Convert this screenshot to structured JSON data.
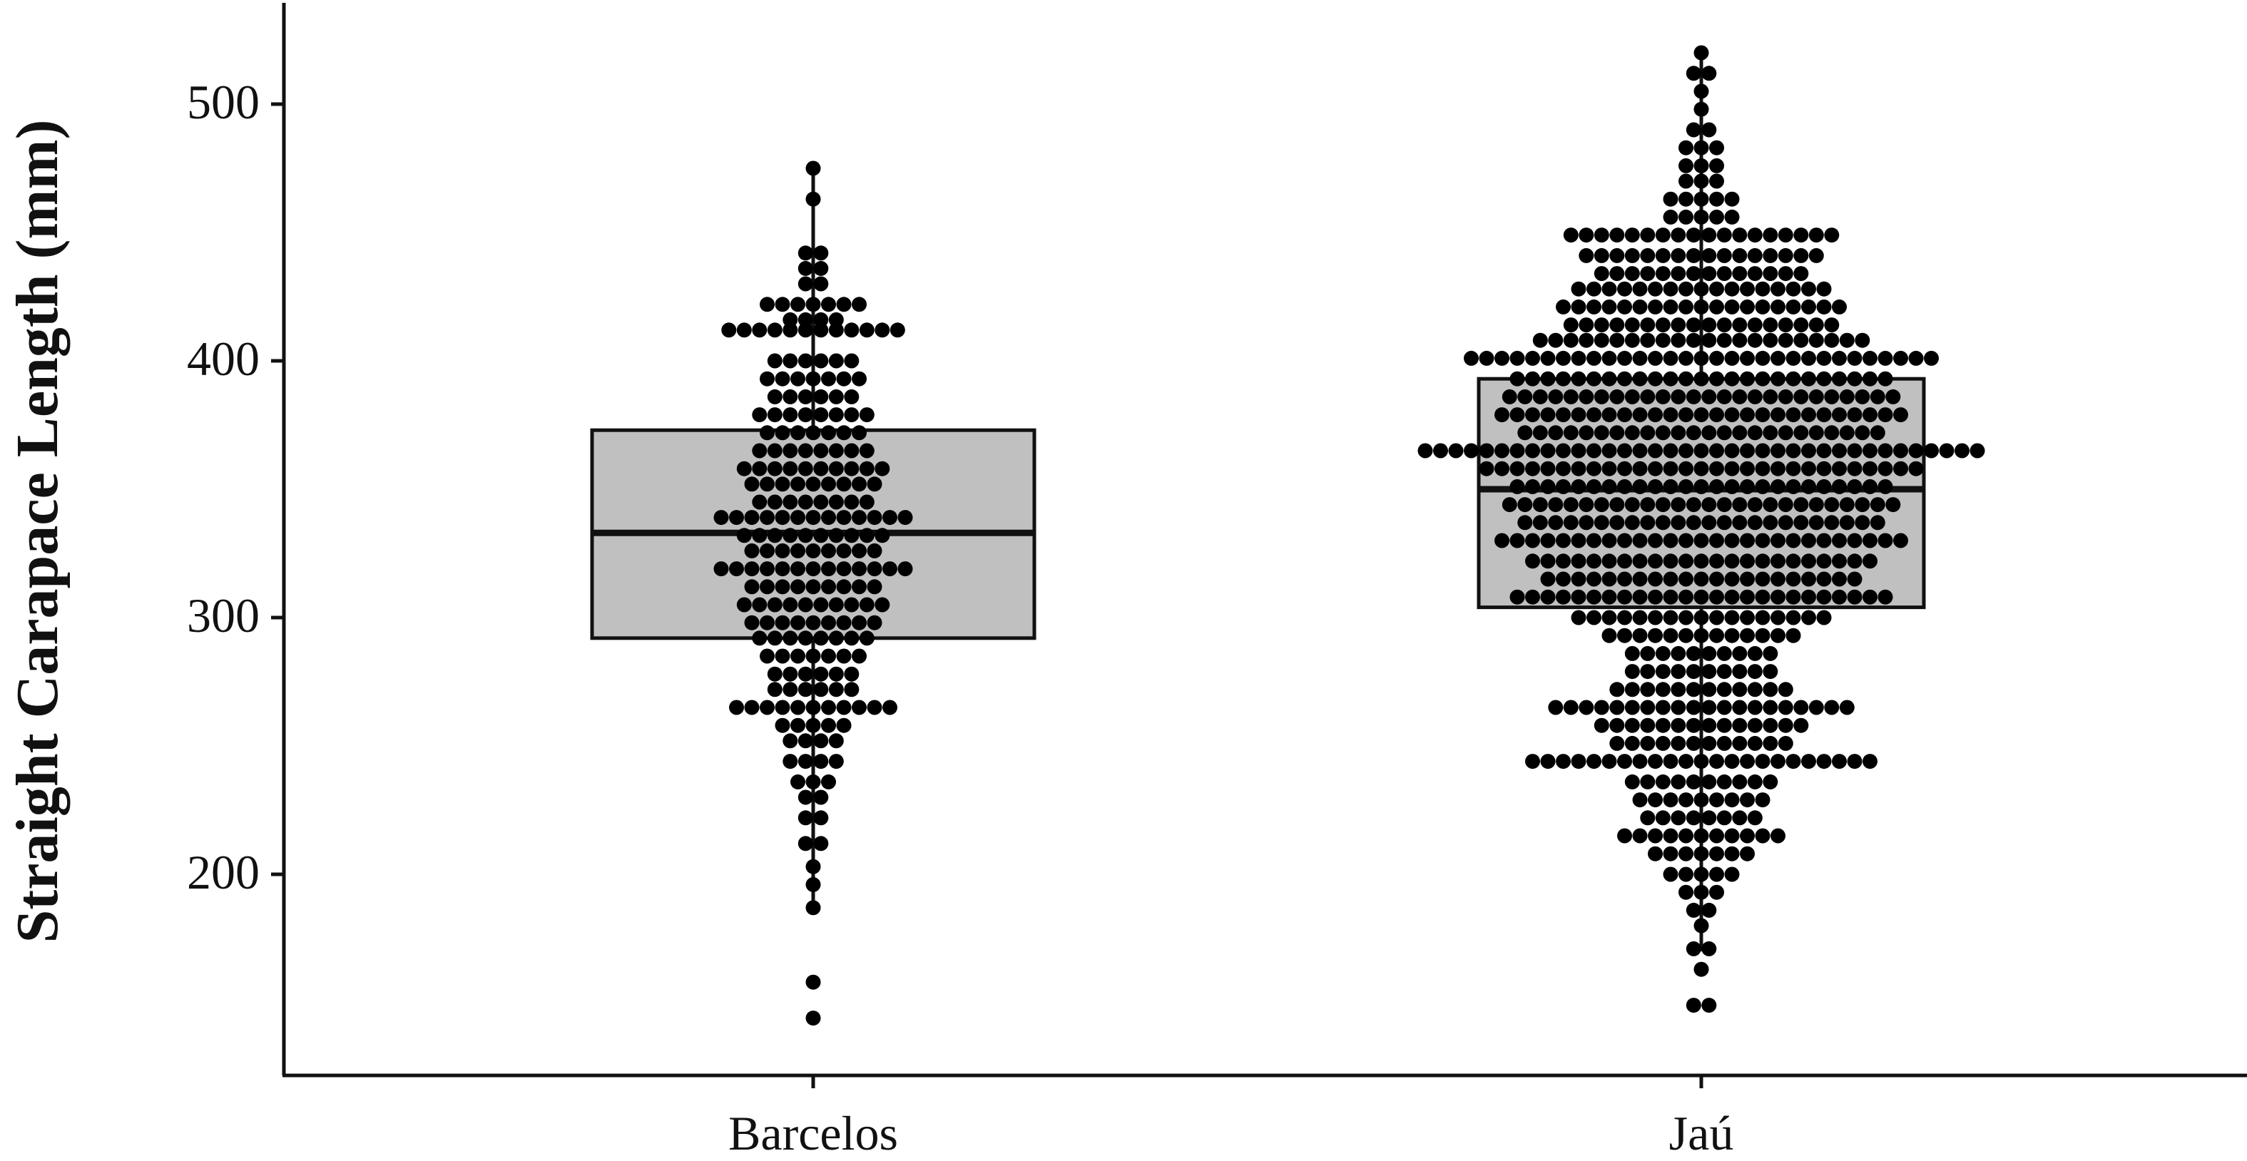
{
  "chart_data": {
    "type": "box",
    "subtype": "box plot with overlaid dot plot (beeswarm)",
    "xlabel": "",
    "ylabel": "Straight Carapace Length (mm)",
    "categories": [
      "Barcelos",
      "Jaú"
    ],
    "yticks": [
      200,
      300,
      400,
      500
    ],
    "ylim": [
      128,
      540
    ],
    "grid": false,
    "legend": "none",
    "colors": {
      "box_fill": "#c0c0c0",
      "box_stroke": "#111111",
      "points": "#000000",
      "axis": "#111111"
    },
    "boxes": [
      {
        "category": "Barcelos",
        "q1": 292,
        "median": 333,
        "q3": 373,
        "whisker_low": 187,
        "whisker_high": 475
      },
      {
        "category": "Jaú",
        "q1": 304,
        "median": 350,
        "q3": 393,
        "whisker_low": 170,
        "whisker_high": 520
      }
    ],
    "dot_bins": [
      {
        "category": "Barcelos",
        "bins": [
          {
            "y": 144,
            "n": 1
          },
          {
            "y": 158,
            "n": 1
          },
          {
            "y": 187,
            "n": 1
          },
          {
            "y": 196,
            "n": 1
          },
          {
            "y": 203,
            "n": 1
          },
          {
            "y": 212,
            "n": 2
          },
          {
            "y": 222,
            "n": 2
          },
          {
            "y": 230,
            "n": 2
          },
          {
            "y": 236,
            "n": 3
          },
          {
            "y": 244,
            "n": 4
          },
          {
            "y": 252,
            "n": 4
          },
          {
            "y": 258,
            "n": 5
          },
          {
            "y": 265,
            "n": 11
          },
          {
            "y": 272,
            "n": 6
          },
          {
            "y": 278,
            "n": 6
          },
          {
            "y": 285,
            "n": 7
          },
          {
            "y": 292,
            "n": 8
          },
          {
            "y": 298,
            "n": 9
          },
          {
            "y": 305,
            "n": 10
          },
          {
            "y": 312,
            "n": 9
          },
          {
            "y": 319,
            "n": 13
          },
          {
            "y": 326,
            "n": 9
          },
          {
            "y": 332,
            "n": 10
          },
          {
            "y": 339,
            "n": 13
          },
          {
            "y": 345,
            "n": 8
          },
          {
            "y": 352,
            "n": 9
          },
          {
            "y": 358,
            "n": 10
          },
          {
            "y": 365,
            "n": 8
          },
          {
            "y": 372,
            "n": 7
          },
          {
            "y": 379,
            "n": 8
          },
          {
            "y": 386,
            "n": 6
          },
          {
            "y": 393,
            "n": 7
          },
          {
            "y": 400,
            "n": 6
          },
          {
            "y": 412,
            "n": 12
          },
          {
            "y": 416,
            "n": 4
          },
          {
            "y": 422,
            "n": 7
          },
          {
            "y": 430,
            "n": 2
          },
          {
            "y": 436,
            "n": 2
          },
          {
            "y": 442,
            "n": 2
          },
          {
            "y": 463,
            "n": 1
          },
          {
            "y": 475,
            "n": 1
          }
        ]
      },
      {
        "category": "Jaú",
        "bins": [
          {
            "y": 149,
            "n": 2
          },
          {
            "y": 163,
            "n": 1
          },
          {
            "y": 171,
            "n": 2
          },
          {
            "y": 180,
            "n": 1
          },
          {
            "y": 186,
            "n": 2
          },
          {
            "y": 193,
            "n": 3
          },
          {
            "y": 200,
            "n": 5
          },
          {
            "y": 208,
            "n": 7
          },
          {
            "y": 215,
            "n": 11
          },
          {
            "y": 222,
            "n": 8
          },
          {
            "y": 229,
            "n": 9
          },
          {
            "y": 236,
            "n": 10
          },
          {
            "y": 244,
            "n": 23
          },
          {
            "y": 251,
            "n": 12
          },
          {
            "y": 258,
            "n": 14
          },
          {
            "y": 265,
            "n": 20
          },
          {
            "y": 272,
            "n": 12
          },
          {
            "y": 279,
            "n": 10
          },
          {
            "y": 286,
            "n": 10
          },
          {
            "y": 293,
            "n": 13
          },
          {
            "y": 300,
            "n": 17
          },
          {
            "y": 308,
            "n": 25
          },
          {
            "y": 315,
            "n": 21
          },
          {
            "y": 322,
            "n": 23
          },
          {
            "y": 330,
            "n": 27
          },
          {
            "y": 337,
            "n": 24
          },
          {
            "y": 344,
            "n": 26
          },
          {
            "y": 351,
            "n": 25
          },
          {
            "y": 358,
            "n": 29
          },
          {
            "y": 365,
            "n": 37
          },
          {
            "y": 372,
            "n": 24
          },
          {
            "y": 379,
            "n": 27
          },
          {
            "y": 386,
            "n": 26
          },
          {
            "y": 393,
            "n": 25
          },
          {
            "y": 401,
            "n": 31
          },
          {
            "y": 408,
            "n": 22
          },
          {
            "y": 414,
            "n": 18
          },
          {
            "y": 421,
            "n": 19
          },
          {
            "y": 428,
            "n": 17
          },
          {
            "y": 434,
            "n": 14
          },
          {
            "y": 441,
            "n": 16
          },
          {
            "y": 449,
            "n": 18
          },
          {
            "y": 456,
            "n": 5
          },
          {
            "y": 463,
            "n": 5
          },
          {
            "y": 470,
            "n": 3
          },
          {
            "y": 476,
            "n": 3
          },
          {
            "y": 483,
            "n": 3
          },
          {
            "y": 490,
            "n": 2
          },
          {
            "y": 498,
            "n": 1
          },
          {
            "y": 505,
            "n": 1
          },
          {
            "y": 512,
            "n": 2
          },
          {
            "y": 520,
            "n": 1
          }
        ]
      }
    ]
  }
}
